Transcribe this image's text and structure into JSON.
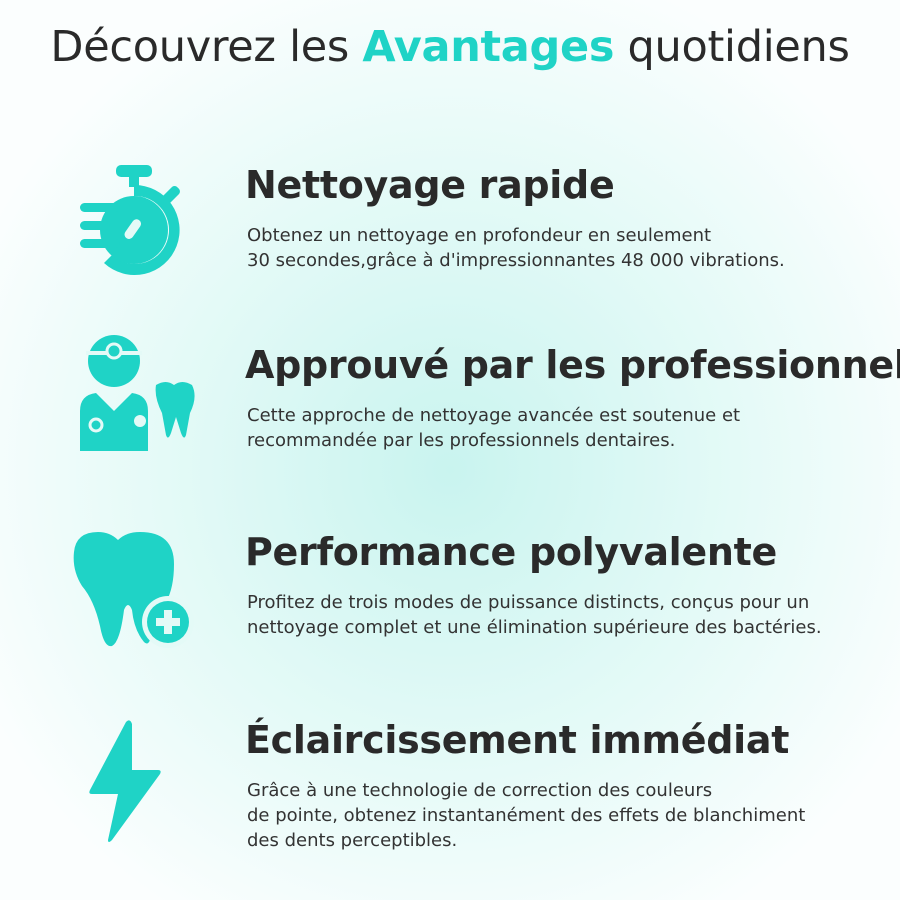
{
  "title": {
    "before": "Découvrez les ",
    "accent": "Avantages",
    "after": " quotidiens"
  },
  "accent_color": "#1fd3c6",
  "features": [
    {
      "icon": "stopwatch-icon",
      "heading": "Nettoyage rapide",
      "lines": [
        "Obtenez un nettoyage en profondeur en seulement",
        "30 secondes,grâce à d'impressionnantes 48 000 vibrations."
      ]
    },
    {
      "icon": "dentist-icon",
      "heading": "Approuvé par les professionnels",
      "lines": [
        "Cette approche de nettoyage avancée est soutenue et",
        "recommandée par les professionnels dentaires."
      ]
    },
    {
      "icon": "tooth-plus-icon",
      "heading": "Performance polyvalente",
      "lines": [
        "Profitez de trois modes de puissance distincts, conçus pour un",
        "nettoyage complet et une élimination supérieure des bactéries."
      ]
    },
    {
      "icon": "lightning-icon",
      "heading": "Éclaircissement immédiat",
      "lines": [
        "Grâce à une technologie de correction des couleurs",
        "de pointe, obtenez instantanément des effets de blanchiment",
        "des dents perceptibles."
      ]
    }
  ]
}
